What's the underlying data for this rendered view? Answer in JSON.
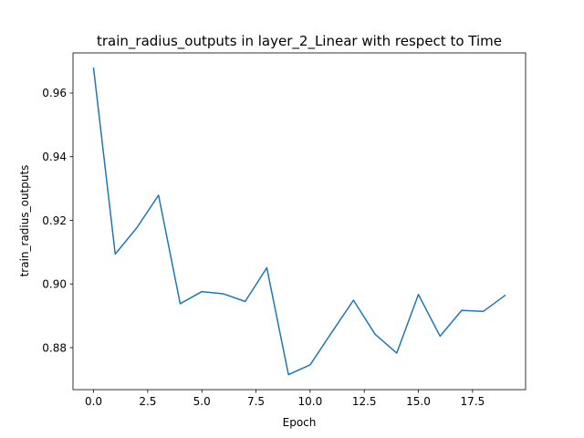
{
  "chart_data": {
    "type": "line",
    "title": "train_radius_outputs in layer_2_Linear with respect to Time",
    "xlabel": "Epoch",
    "ylabel": "train_radius_outputs",
    "xlim": [
      -0.95,
      19.95
    ],
    "ylim": [
      0.8668,
      0.9726
    ],
    "xticks": [
      0.0,
      2.5,
      5.0,
      7.5,
      10.0,
      12.5,
      15.0,
      17.5
    ],
    "xtick_labels": [
      "0.0",
      "2.5",
      "5.0",
      "7.5",
      "10.0",
      "12.5",
      "15.0",
      "17.5"
    ],
    "yticks": [
      0.88,
      0.9,
      0.92,
      0.94,
      0.96
    ],
    "ytick_labels": [
      "0.88",
      "0.90",
      "0.92",
      "0.94",
      "0.96"
    ],
    "grid": false,
    "series": [
      {
        "color": "#1f77b4",
        "x": [
          0,
          1,
          2,
          3,
          4,
          5,
          6,
          7,
          8,
          9,
          10,
          11,
          12,
          13,
          14,
          15,
          16,
          17,
          18,
          19
        ],
        "y": [
          0.9678,
          0.9094,
          0.9177,
          0.9279,
          0.8938,
          0.8976,
          0.8969,
          0.8945,
          0.9051,
          0.8715,
          0.8746,
          0.8848,
          0.8949,
          0.8842,
          0.8783,
          0.8967,
          0.8836,
          0.8917,
          0.8914,
          0.8964
        ]
      }
    ]
  }
}
